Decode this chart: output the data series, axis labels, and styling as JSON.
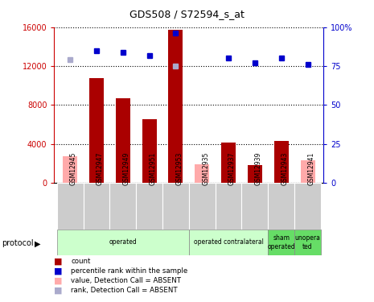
{
  "title": "GDS508 / S72594_s_at",
  "samples": [
    "GSM12945",
    "GSM12947",
    "GSM12949",
    "GSM12951",
    "GSM12953",
    "GSM12935",
    "GSM12937",
    "GSM12939",
    "GSM12943",
    "GSM12941"
  ],
  "counts": [
    null,
    10800,
    8700,
    6500,
    15700,
    null,
    4100,
    1800,
    4300,
    null
  ],
  "counts_absent": [
    2700,
    null,
    null,
    null,
    null,
    1900,
    null,
    null,
    null,
    2300
  ],
  "ranks_pct": [
    null,
    85,
    84,
    82,
    96,
    null,
    80,
    77,
    80,
    76
  ],
  "ranks_absent_pct": [
    79,
    null,
    null,
    null,
    75,
    null,
    null,
    null,
    null,
    null
  ],
  "protocol_groups": [
    {
      "label": "operated",
      "start": 0,
      "end": 5,
      "color": "#ccffcc"
    },
    {
      "label": "operated contralateral",
      "start": 5,
      "end": 8,
      "color": "#ccffcc"
    },
    {
      "label": "sham\noperated",
      "start": 8,
      "end": 9,
      "color": "#66dd66"
    },
    {
      "label": "unopera\nted",
      "start": 9,
      "end": 10,
      "color": "#66dd66"
    }
  ],
  "bar_color_present": "#aa0000",
  "bar_color_absent": "#ffaaaa",
  "dot_color_present": "#0000cc",
  "dot_color_absent": "#aaaacc",
  "ylim_left": [
    0,
    16000
  ],
  "ylim_right": [
    0,
    100
  ],
  "yticks_left": [
    0,
    4000,
    8000,
    12000,
    16000
  ],
  "yticks_right": [
    0,
    25,
    50,
    75,
    100
  ],
  "ytick_labels_left": [
    "0",
    "4000",
    "8000",
    "12000",
    "16000"
  ],
  "ytick_labels_right": [
    "0",
    "25",
    "50",
    "75",
    "100%"
  ],
  "legend_items": [
    {
      "label": "count",
      "color": "#aa0000"
    },
    {
      "label": "percentile rank within the sample",
      "color": "#0000cc"
    },
    {
      "label": "value, Detection Call = ABSENT",
      "color": "#ffaaaa"
    },
    {
      "label": "rank, Detection Call = ABSENT",
      "color": "#aaaacc"
    }
  ],
  "fig_width": 4.65,
  "fig_height": 3.75,
  "dpi": 100
}
